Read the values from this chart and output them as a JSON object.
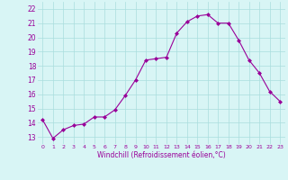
{
  "x": [
    0,
    1,
    2,
    3,
    4,
    5,
    6,
    7,
    8,
    9,
    10,
    11,
    12,
    13,
    14,
    15,
    16,
    17,
    18,
    19,
    20,
    21,
    22,
    23
  ],
  "y": [
    14.2,
    12.9,
    13.5,
    13.8,
    13.9,
    14.4,
    14.4,
    14.9,
    15.9,
    17.0,
    18.4,
    18.5,
    18.6,
    20.3,
    21.1,
    21.5,
    21.6,
    21.0,
    21.0,
    19.8,
    18.4,
    17.5,
    16.2,
    15.5
  ],
  "line_color": "#990099",
  "marker": "D",
  "marker_size": 2.0,
  "bg_color": "#d8f5f5",
  "grid_color": "#aadddd",
  "xlabel": "Windchill (Refroidissement éolien,°C)",
  "xlabel_color": "#990099",
  "ylabel_ticks": [
    13,
    14,
    15,
    16,
    17,
    18,
    19,
    20,
    21,
    22
  ],
  "ylim": [
    12.5,
    22.5
  ],
  "xlim": [
    -0.5,
    23.5
  ],
  "tick_label_color": "#990099"
}
